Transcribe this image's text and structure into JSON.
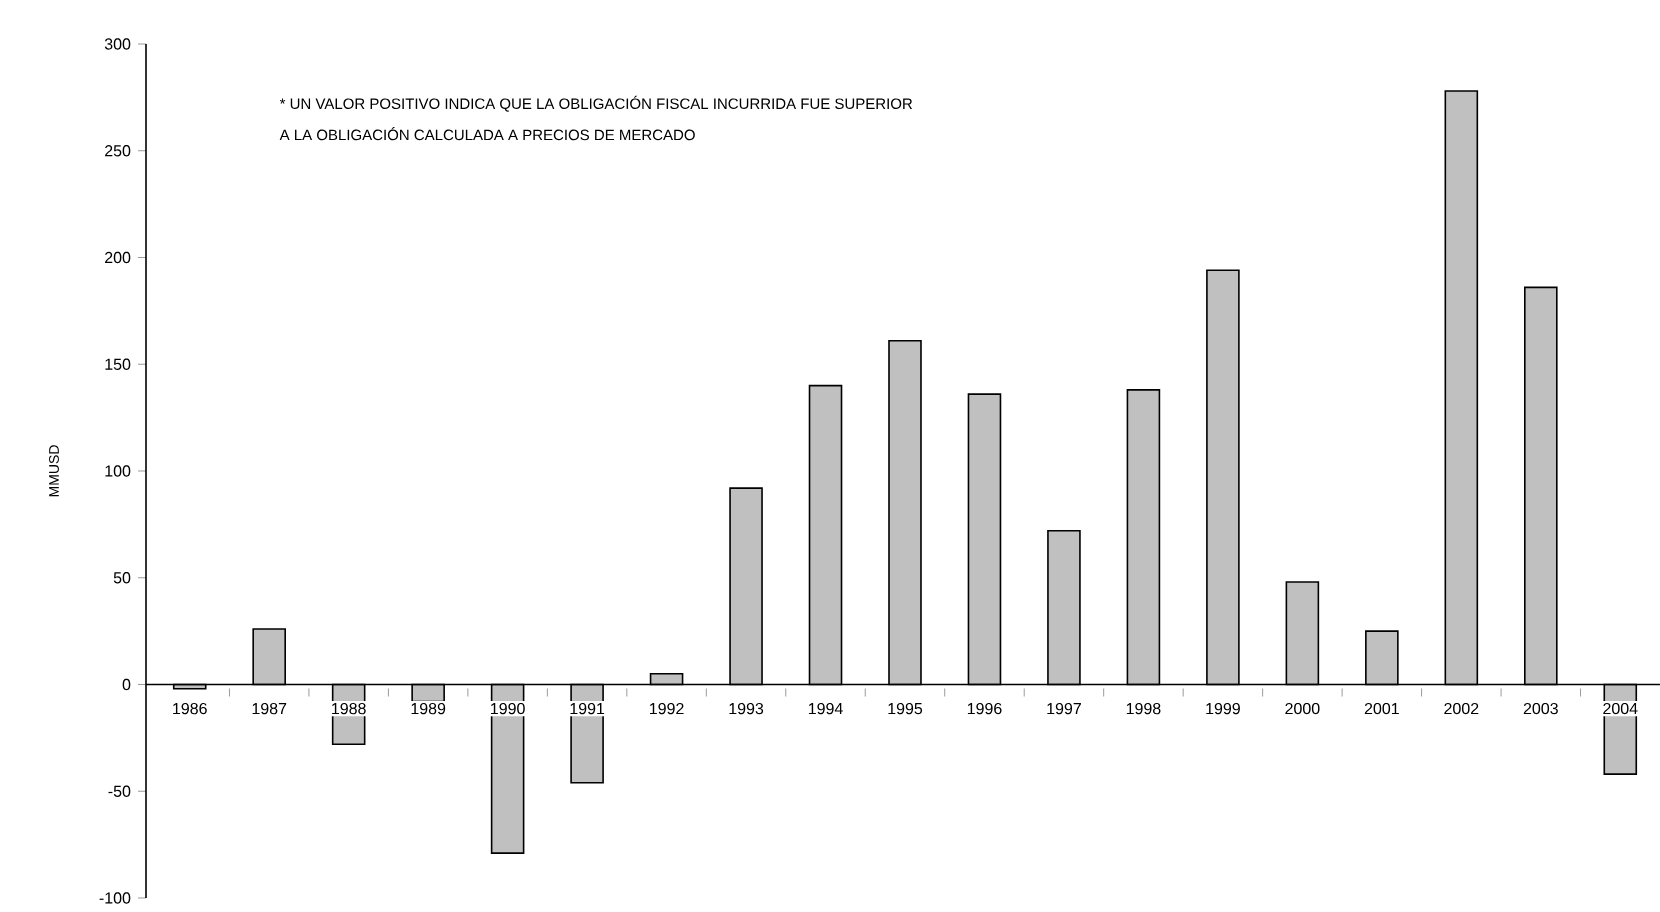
{
  "chart_data": {
    "type": "bar",
    "ylabel": "MMUSD",
    "annotations": [
      "* UN VALOR POSITIVO INDICA QUE LA OBLIGACIÓN FISCAL INCURRIDA FUE SUPERIOR",
      "A LA OBLIGACIÓN CALCULADA A PRECIOS DE MERCADO"
    ],
    "categories": [
      "1986",
      "1987",
      "1988",
      "1989",
      "1990",
      "1991",
      "1992",
      "1993",
      "1994",
      "1995",
      "1996",
      "1997",
      "1998",
      "1999",
      "2000",
      "2001",
      "2002",
      "2003",
      "2004"
    ],
    "values": [
      -2,
      26,
      -28,
      -8,
      -79,
      -46,
      5,
      92,
      140,
      161,
      136,
      72,
      138,
      194,
      48,
      25,
      278,
      186,
      -42
    ],
    "color": "#c0c0c0",
    "ylim": [
      -100,
      300
    ],
    "yticks": [
      -100,
      -50,
      0,
      50,
      100,
      150,
      200,
      250,
      300
    ]
  }
}
